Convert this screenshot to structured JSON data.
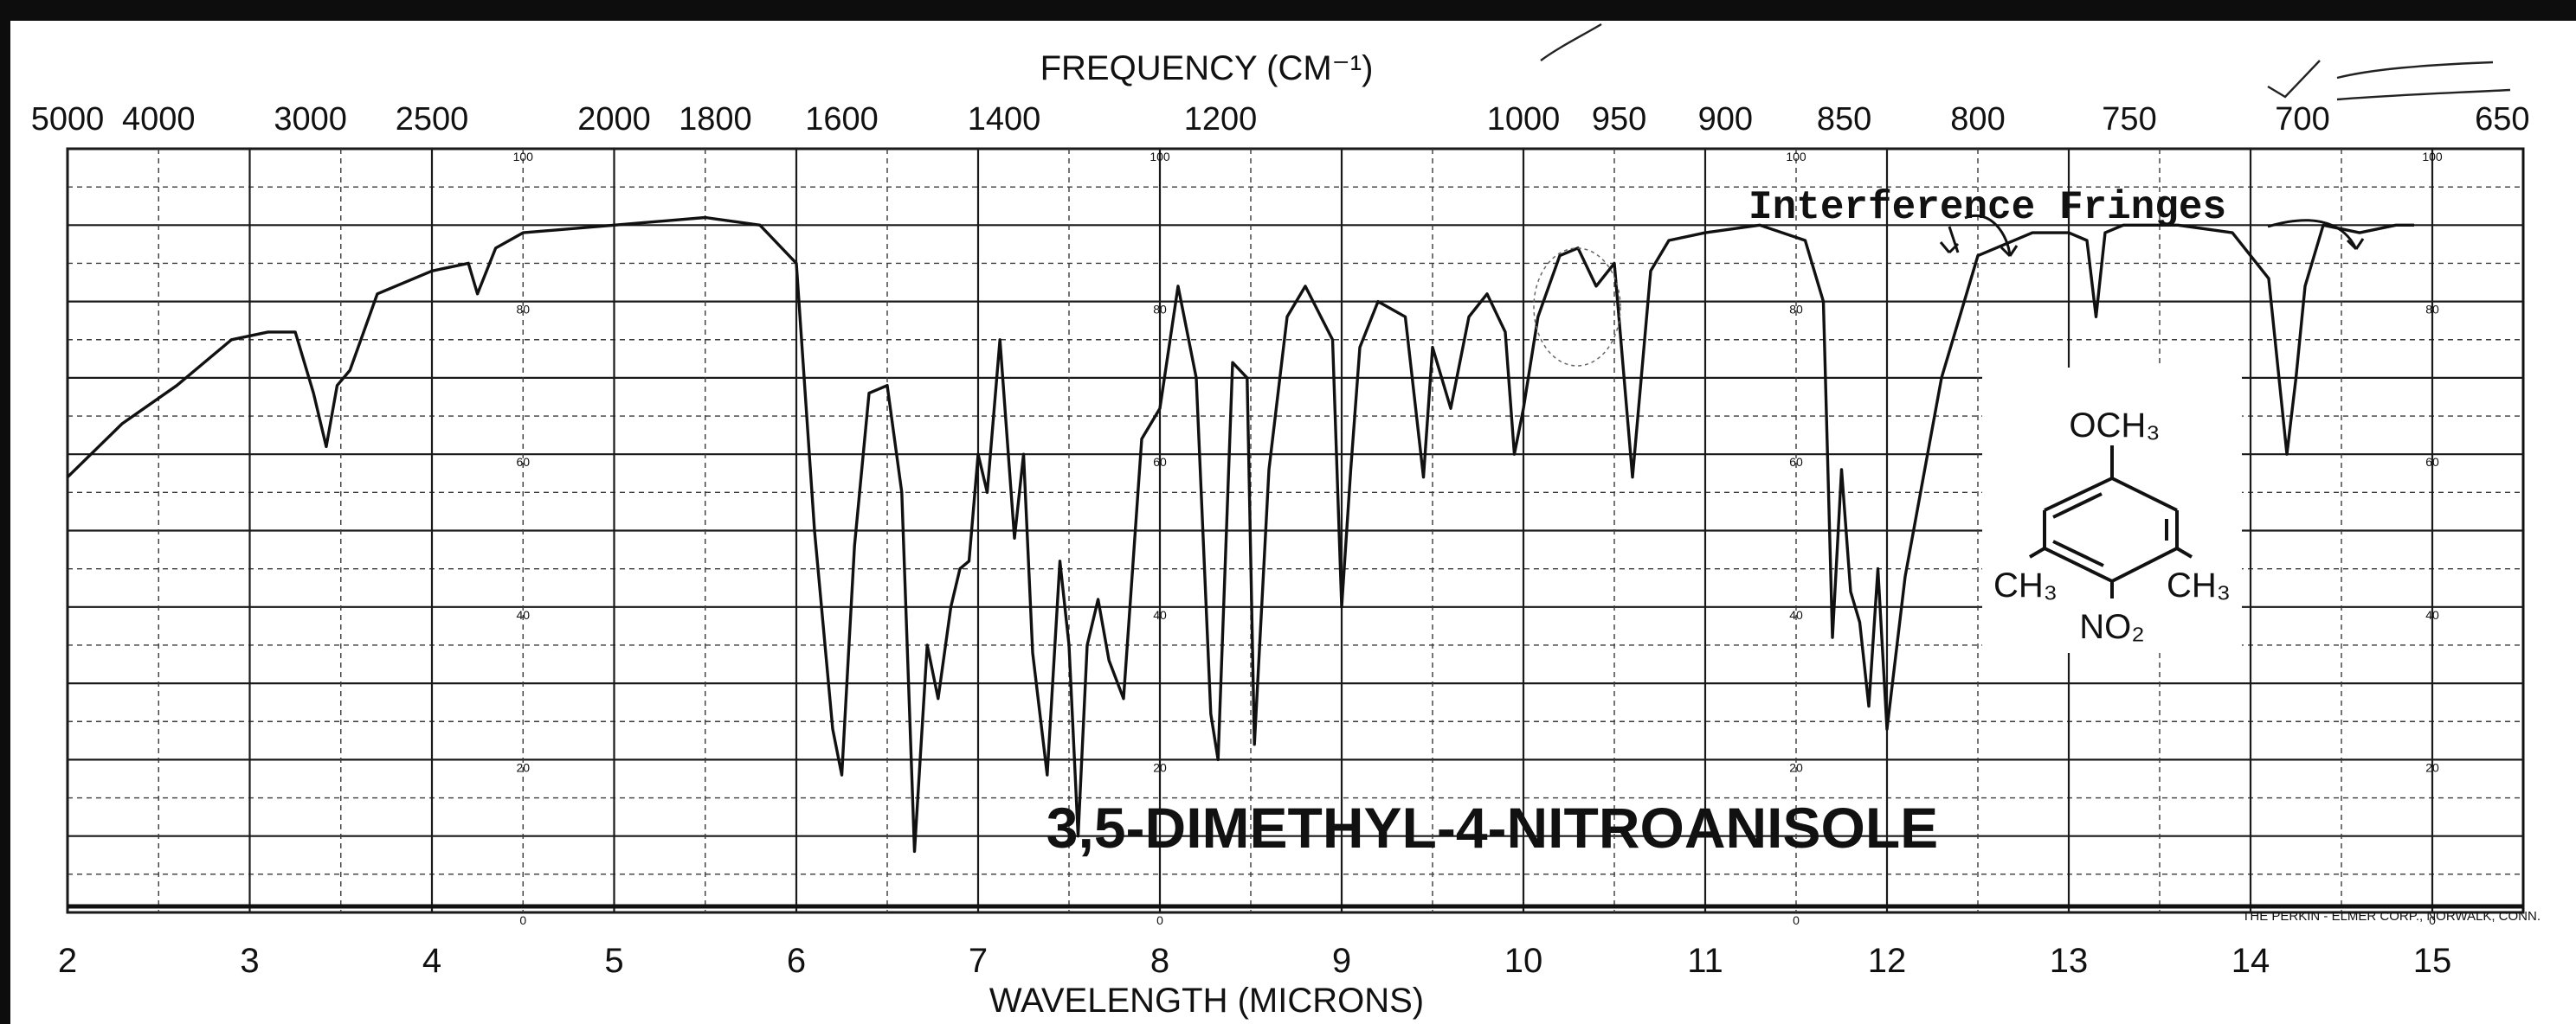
{
  "chart_data": {
    "type": "line",
    "title": "3,5-DIMETHYL-4-NITROANISOLE",
    "top_axis": {
      "label": "FREQUENCY (CM⁻¹)",
      "ticks": [
        "5000",
        "4000",
        "3000",
        "2500",
        "2000",
        "1800",
        "1600",
        "1400",
        "1200",
        "1000",
        "950",
        "900",
        "850",
        "800",
        "750",
        "700",
        "650"
      ],
      "tick_values_cm": [
        5000,
        4000,
        3000,
        2500,
        2000,
        1800,
        1600,
        1400,
        1200,
        1000,
        950,
        900,
        850,
        800,
        750,
        700,
        650
      ]
    },
    "xlabel": "WAVELENGTH (MICRONS)",
    "xticks": [
      "2",
      "3",
      "4",
      "5",
      "6",
      "7",
      "8",
      "9",
      "10",
      "11",
      "12",
      "13",
      "14",
      "15"
    ],
    "xlim": [
      2,
      15.5
    ],
    "ylim": [
      0,
      100
    ],
    "yticks": [
      "100",
      "80",
      "60",
      "40",
      "20",
      "0"
    ],
    "grid": true,
    "series": [
      {
        "x": [
          2.0,
          2.3,
          2.6,
          2.9,
          3.1,
          3.25,
          3.35,
          3.42,
          3.48,
          3.55,
          3.7,
          4.0,
          4.2,
          4.25,
          4.35,
          4.5,
          5.0,
          5.5,
          5.8,
          6.0,
          6.1,
          6.2,
          6.25,
          6.32,
          6.4,
          6.5,
          6.58,
          6.65,
          6.72,
          6.78,
          6.85,
          6.9,
          6.95,
          7.0,
          7.05,
          7.12,
          7.2,
          7.25,
          7.3,
          7.38,
          7.45,
          7.5,
          7.55,
          7.6,
          7.66,
          7.72,
          7.8,
          7.9,
          8.0,
          8.1,
          8.2,
          8.28,
          8.32,
          8.4,
          8.48,
          8.52,
          8.6,
          8.7,
          8.8,
          8.95,
          9.0,
          9.05,
          9.1,
          9.2,
          9.35,
          9.45,
          9.5,
          9.6,
          9.7,
          9.8,
          9.9,
          9.95,
          10.0,
          10.08,
          10.2,
          10.3,
          10.4,
          10.5,
          10.6,
          10.7,
          10.8,
          11.0,
          11.3,
          11.55,
          11.65,
          11.7,
          11.75,
          11.8,
          11.85,
          11.9,
          11.95,
          12.0,
          12.1,
          12.3,
          12.5,
          12.8,
          13.0,
          13.1,
          13.15,
          13.2,
          13.3,
          13.6,
          13.9,
          14.1,
          14.2,
          14.25,
          14.3,
          14.4,
          14.6,
          14.8,
          14.9
        ],
        "y": [
          57,
          64,
          69,
          75,
          76,
          76,
          68,
          61,
          69,
          71,
          81,
          84,
          85,
          81,
          87,
          89,
          90,
          91,
          90,
          85,
          50,
          24,
          18,
          48,
          68,
          69,
          55,
          8,
          35,
          28,
          40,
          45,
          46,
          60,
          55,
          75,
          49,
          60,
          34,
          18,
          46,
          35,
          10,
          35,
          41,
          33,
          28,
          62,
          66,
          82,
          70,
          26,
          20,
          72,
          70,
          22,
          58,
          78,
          82,
          75,
          40,
          58,
          74,
          80,
          78,
          57,
          74,
          66,
          78,
          81,
          76,
          60,
          66,
          78,
          86,
          87,
          82,
          85,
          57,
          84,
          88,
          89,
          90,
          88,
          80,
          36,
          58,
          42,
          38,
          27,
          45,
          24,
          44,
          70,
          86,
          89,
          89,
          88,
          78,
          89,
          90,
          90,
          89,
          83,
          60,
          70,
          82,
          90,
          89,
          90,
          90
        ],
        "note_ink": "#111111"
      }
    ],
    "annotations": {
      "interference": "Interference Fringes",
      "structure_top": "OCH₃",
      "structure_left": "CH₃",
      "structure_right": "CH₃",
      "structure_bottom": "NO₂",
      "maker": "THE PERKIN - ELMER CORP., NORWALK, CONN."
    }
  }
}
